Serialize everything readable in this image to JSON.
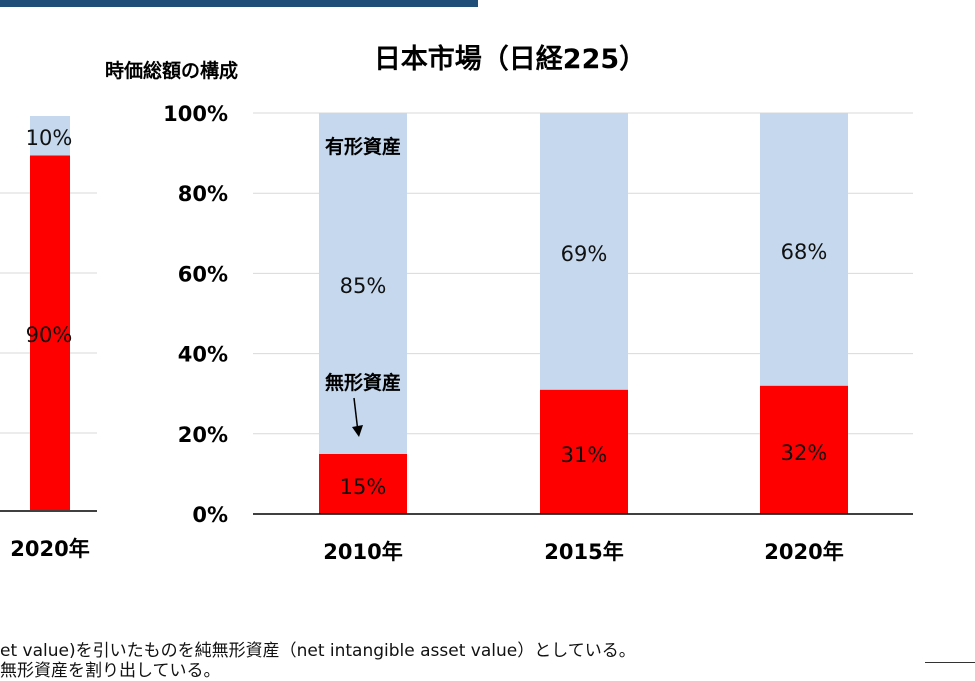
{
  "chart_title": "日本市場（日経225）",
  "ylabel": "時価総額の構成",
  "colors": {
    "intangible": "#ff0000",
    "tangible": "#c5d8ee",
    "accent_bar": "#1f4e79",
    "grid": "#d9d9d9"
  },
  "annotations": {
    "tangible": "有形資産",
    "intangible": "無形資産"
  },
  "chart_data": [
    {
      "type": "bar",
      "title": "",
      "categories": [
        "2020年"
      ],
      "series": [
        {
          "name": "",
          "values": [
            90
          ]
        },
        {
          "name": "",
          "values": [
            10
          ]
        }
      ],
      "value_labels": [
        [
          "90%"
        ],
        [
          "10%"
        ]
      ],
      "stacked": true,
      "ylim": [
        0,
        100
      ]
    },
    {
      "type": "bar",
      "title": "日本市場（日経225）",
      "ylabel": "時価総額の構成",
      "categories": [
        "2010年",
        "2015年",
        "2020年"
      ],
      "series": [
        {
          "name": "",
          "values": [
            15,
            31,
            32
          ]
        },
        {
          "name": "",
          "values": [
            85,
            69,
            68
          ]
        }
      ],
      "value_labels": [
        [
          "15%",
          "31%",
          "32%"
        ],
        [
          "85%",
          "69%",
          "68%"
        ]
      ],
      "yticks": [
        "0%",
        "20%",
        "40%",
        "60%",
        "80%",
        "100%"
      ],
      "ylim": [
        0,
        100
      ],
      "stacked": true,
      "grid": true
    }
  ],
  "footnotes": [
    "et value)を引いたものを純無形資産（net intangible asset value）としている。",
    "無形資産を割り出している。"
  ]
}
